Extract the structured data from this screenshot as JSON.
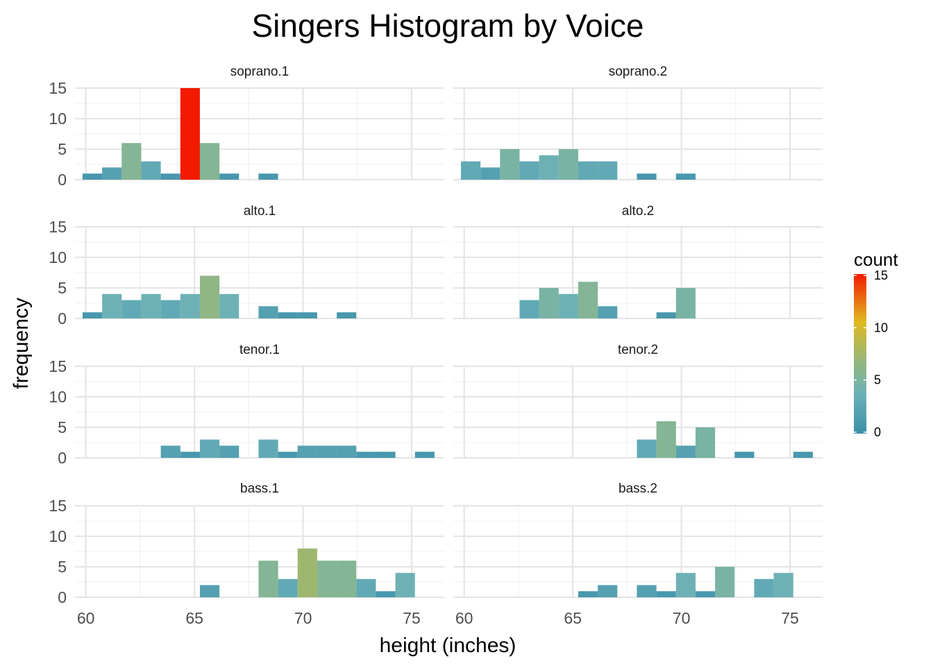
{
  "chart_data": {
    "type": "bar",
    "title": "Singers Histogram by Voice",
    "xlabel": "height (inches)",
    "ylabel": "frequency",
    "xlim": [
      59.5,
      76.5
    ],
    "ylim": [
      0,
      15
    ],
    "x_ticks": [
      60,
      65,
      70,
      75
    ],
    "y_ticks": [
      0,
      5,
      10,
      15
    ],
    "bin_width": 0.9,
    "grid": true,
    "legend": {
      "title": "count",
      "position": "right",
      "ticks": [
        0,
        5,
        10,
        15
      ],
      "colors": [
        "#3B8FA9",
        "#6BB1B8",
        "#94B77C",
        "#E0B81E",
        "#F21A00"
      ]
    },
    "panels": [
      {
        "name": "soprano.1",
        "bins": [
          {
            "x": 60.3,
            "count": 1
          },
          {
            "x": 61.2,
            "count": 2
          },
          {
            "x": 62.1,
            "count": 6
          },
          {
            "x": 63.0,
            "count": 3
          },
          {
            "x": 63.9,
            "count": 1
          },
          {
            "x": 64.8,
            "count": 15
          },
          {
            "x": 65.7,
            "count": 6
          },
          {
            "x": 66.6,
            "count": 1
          },
          {
            "x": 68.4,
            "count": 1
          }
        ]
      },
      {
        "name": "soprano.2",
        "bins": [
          {
            "x": 60.3,
            "count": 3
          },
          {
            "x": 61.2,
            "count": 2
          },
          {
            "x": 62.1,
            "count": 5
          },
          {
            "x": 63.0,
            "count": 3
          },
          {
            "x": 63.9,
            "count": 4
          },
          {
            "x": 64.8,
            "count": 5
          },
          {
            "x": 65.7,
            "count": 3
          },
          {
            "x": 66.6,
            "count": 3
          },
          {
            "x": 68.4,
            "count": 1
          },
          {
            "x": 70.2,
            "count": 1
          }
        ]
      },
      {
        "name": "alto.1",
        "bins": [
          {
            "x": 60.3,
            "count": 1
          },
          {
            "x": 61.2,
            "count": 4
          },
          {
            "x": 62.1,
            "count": 3
          },
          {
            "x": 63.0,
            "count": 4
          },
          {
            "x": 63.9,
            "count": 3
          },
          {
            "x": 64.8,
            "count": 4
          },
          {
            "x": 65.7,
            "count": 7
          },
          {
            "x": 66.6,
            "count": 4
          },
          {
            "x": 68.4,
            "count": 2
          },
          {
            "x": 69.3,
            "count": 1
          },
          {
            "x": 70.2,
            "count": 1
          },
          {
            "x": 72.0,
            "count": 1
          }
        ]
      },
      {
        "name": "alto.2",
        "bins": [
          {
            "x": 63.0,
            "count": 3
          },
          {
            "x": 63.9,
            "count": 5
          },
          {
            "x": 64.8,
            "count": 4
          },
          {
            "x": 65.7,
            "count": 6
          },
          {
            "x": 66.6,
            "count": 2
          },
          {
            "x": 69.3,
            "count": 1
          },
          {
            "x": 70.2,
            "count": 5
          }
        ]
      },
      {
        "name": "tenor.1",
        "bins": [
          {
            "x": 63.9,
            "count": 2
          },
          {
            "x": 64.8,
            "count": 1
          },
          {
            "x": 65.7,
            "count": 3
          },
          {
            "x": 66.6,
            "count": 2
          },
          {
            "x": 68.4,
            "count": 3
          },
          {
            "x": 69.3,
            "count": 1
          },
          {
            "x": 70.2,
            "count": 2
          },
          {
            "x": 71.1,
            "count": 2
          },
          {
            "x": 72.0,
            "count": 2
          },
          {
            "x": 72.9,
            "count": 1
          },
          {
            "x": 73.8,
            "count": 1
          },
          {
            "x": 75.6,
            "count": 1
          }
        ]
      },
      {
        "name": "tenor.2",
        "bins": [
          {
            "x": 68.4,
            "count": 3
          },
          {
            "x": 69.3,
            "count": 6
          },
          {
            "x": 70.2,
            "count": 2
          },
          {
            "x": 71.1,
            "count": 5
          },
          {
            "x": 72.9,
            "count": 1
          },
          {
            "x": 75.6,
            "count": 1
          }
        ]
      },
      {
        "name": "bass.1",
        "bins": [
          {
            "x": 65.7,
            "count": 2
          },
          {
            "x": 68.4,
            "count": 6
          },
          {
            "x": 69.3,
            "count": 3
          },
          {
            "x": 70.2,
            "count": 8
          },
          {
            "x": 71.1,
            "count": 6
          },
          {
            "x": 72.0,
            "count": 6
          },
          {
            "x": 72.9,
            "count": 3
          },
          {
            "x": 73.8,
            "count": 1
          },
          {
            "x": 74.7,
            "count": 4
          }
        ]
      },
      {
        "name": "bass.2",
        "bins": [
          {
            "x": 65.7,
            "count": 1
          },
          {
            "x": 66.6,
            "count": 2
          },
          {
            "x": 68.4,
            "count": 2
          },
          {
            "x": 69.3,
            "count": 1
          },
          {
            "x": 70.2,
            "count": 4
          },
          {
            "x": 71.1,
            "count": 1
          },
          {
            "x": 72.0,
            "count": 5
          },
          {
            "x": 73.8,
            "count": 3
          },
          {
            "x": 74.7,
            "count": 4
          }
        ]
      }
    ]
  }
}
